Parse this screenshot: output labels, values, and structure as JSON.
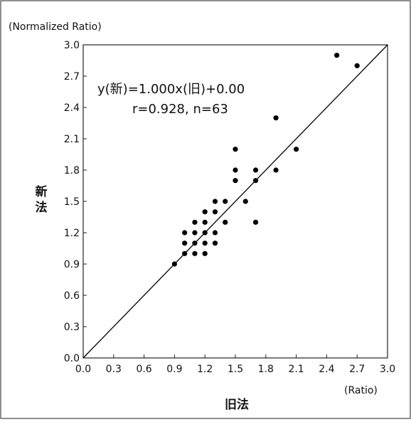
{
  "chart_data": {
    "type": "scatter",
    "title": "",
    "y_unit_label": "(Normalized Ratio)",
    "x_unit_label": "(Ratio)",
    "ylabel": "新法",
    "xlabel": "旧法",
    "xlim": [
      0,
      3
    ],
    "ylim": [
      0,
      3
    ],
    "x_ticks": [
      "0.0",
      "0.3",
      "0.6",
      "0.9",
      "1.2",
      "1.5",
      "1.8",
      "2.1",
      "2.4",
      "2.7",
      "3.0"
    ],
    "y_ticks": [
      "0.0",
      "0.3",
      "0.6",
      "0.9",
      "1.2",
      "1.5",
      "1.8",
      "2.1",
      "2.4",
      "2.7",
      "3.0"
    ],
    "grid": false,
    "annotation": {
      "equation": "y(新)=1.000x(旧)+0.00",
      "stats": "r=0.928, n=63"
    },
    "regression_line": {
      "slope": 1.0,
      "intercept": 0.0
    },
    "points": [
      [
        0.9,
        0.9
      ],
      [
        1.0,
        1.0
      ],
      [
        1.0,
        1.1
      ],
      [
        1.0,
        1.2
      ],
      [
        1.1,
        1.0
      ],
      [
        1.1,
        1.1
      ],
      [
        1.1,
        1.2
      ],
      [
        1.1,
        1.3
      ],
      [
        1.2,
        1.0
      ],
      [
        1.2,
        1.1
      ],
      [
        1.2,
        1.2
      ],
      [
        1.2,
        1.3
      ],
      [
        1.2,
        1.4
      ],
      [
        1.3,
        1.1
      ],
      [
        1.3,
        1.2
      ],
      [
        1.3,
        1.4
      ],
      [
        1.3,
        1.5
      ],
      [
        1.4,
        1.3
      ],
      [
        1.4,
        1.5
      ],
      [
        1.5,
        1.7
      ],
      [
        1.5,
        1.8
      ],
      [
        1.5,
        2.0
      ],
      [
        1.6,
        1.5
      ],
      [
        1.7,
        1.3
      ],
      [
        1.7,
        1.7
      ],
      [
        1.7,
        1.8
      ],
      [
        1.9,
        1.8
      ],
      [
        1.9,
        2.3
      ],
      [
        2.1,
        2.0
      ],
      [
        2.5,
        2.9
      ],
      [
        2.7,
        2.8
      ]
    ],
    "point_color": "#000000",
    "line_color": "#000000"
  }
}
